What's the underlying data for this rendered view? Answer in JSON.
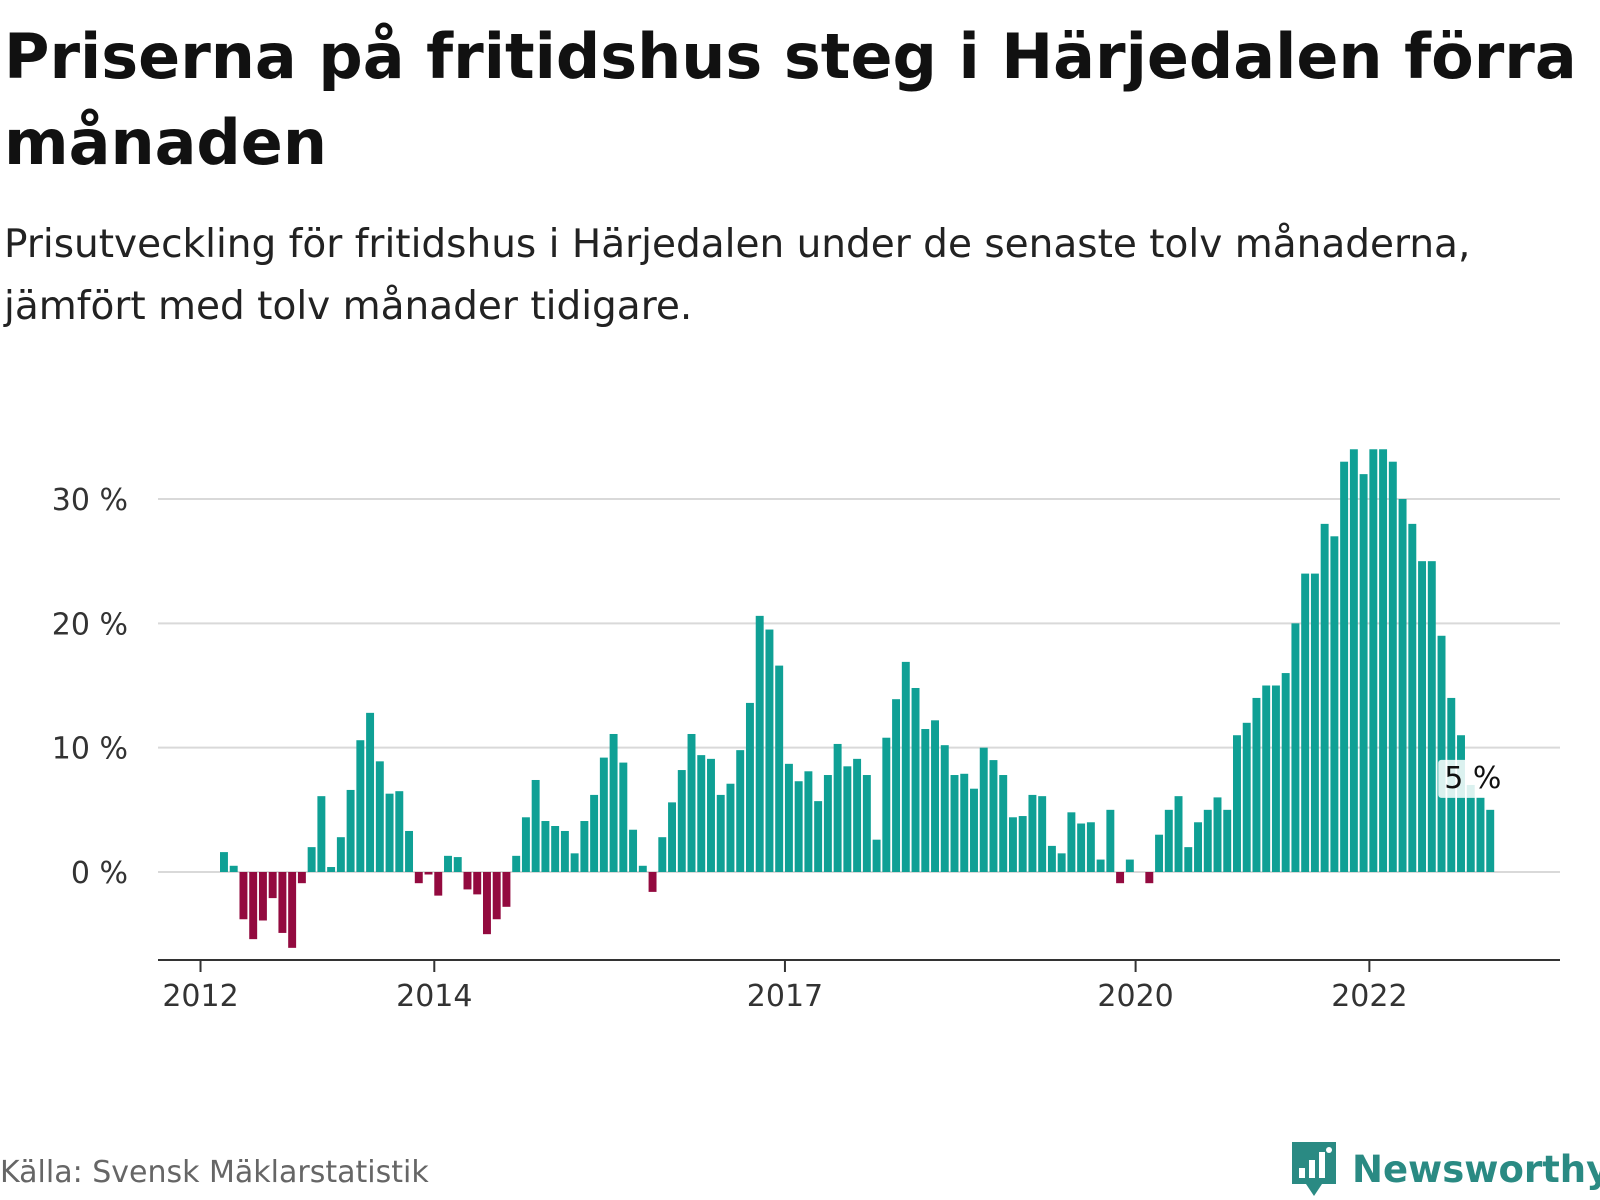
{
  "title": "Priserna på fritidshus steg i Härjedalen förra månaden",
  "subtitle": "Prisutveckling för fritidshus i Härjedalen under de senaste tolv månaderna, jämfört med tolv månader tidigare.",
  "source": "Källa: Svensk Mäklarstatistik",
  "brand": {
    "name": "Newsworthy",
    "logo_icon": "bar-chart-bubble-icon"
  },
  "colors": {
    "positive": "#0fa095",
    "negative": "#930a3f",
    "grid": "#d9d9d9",
    "axis": "#333333",
    "brand": "#2a8a83"
  },
  "chart_data": {
    "type": "bar",
    "x_start": "2012-03",
    "x_end": "2023-03",
    "x_ticks": [
      "2012",
      "2014",
      "2017",
      "2020",
      "2022"
    ],
    "y_ticks": [
      "0 %",
      "10 %",
      "20 %",
      "30 %"
    ],
    "y_tick_values": [
      0,
      10,
      20,
      30
    ],
    "ylim": [
      -7,
      34
    ],
    "end_label": "5 %",
    "values": [
      1.6,
      0.5,
      -3.8,
      -5.4,
      -3.9,
      -2.1,
      -4.9,
      -6.1,
      -0.9,
      2.0,
      6.1,
      0.4,
      2.8,
      6.6,
      10.6,
      12.8,
      8.9,
      6.3,
      6.5,
      3.3,
      -0.9,
      -0.2,
      -1.9,
      1.3,
      1.2,
      -1.4,
      -1.8,
      -5.0,
      -3.8,
      -2.8,
      1.3,
      4.4,
      7.4,
      4.1,
      3.7,
      3.3,
      1.5,
      4.1,
      6.2,
      9.2,
      11.1,
      8.8,
      3.4,
      0.5,
      -1.6,
      2.8,
      5.6,
      8.2,
      11.1,
      9.4,
      9.1,
      6.2,
      7.1,
      9.8,
      13.6,
      20.6,
      19.5,
      16.6,
      8.7,
      7.3,
      8.1,
      5.7,
      7.8,
      10.3,
      8.5,
      9.1,
      7.8,
      2.6,
      10.8,
      13.9,
      16.9,
      14.8,
      11.5,
      12.2,
      10.2,
      7.8,
      7.9,
      6.7,
      10.0,
      9.0,
      7.8,
      4.4,
      4.5,
      6.2,
      6.1,
      2.1,
      1.5,
      4.8,
      3.9,
      4.0,
      1.0,
      5.0,
      -0.9,
      1.0,
      0.0,
      -0.9,
      3.0,
      5.0,
      6.1,
      2.0,
      4.0,
      5.0,
      6.0,
      5.0,
      11.0,
      12.0,
      14.0,
      15.0,
      15.0,
      16.0,
      20.0,
      24.0,
      24.0,
      28.0,
      27.0,
      33.0,
      34.0,
      32.0,
      34.0,
      34.0,
      33.0,
      30.0,
      28.0,
      25.0,
      25.0,
      19.0,
      14.0,
      11.0,
      7.0,
      6.0,
      5.0
    ]
  }
}
